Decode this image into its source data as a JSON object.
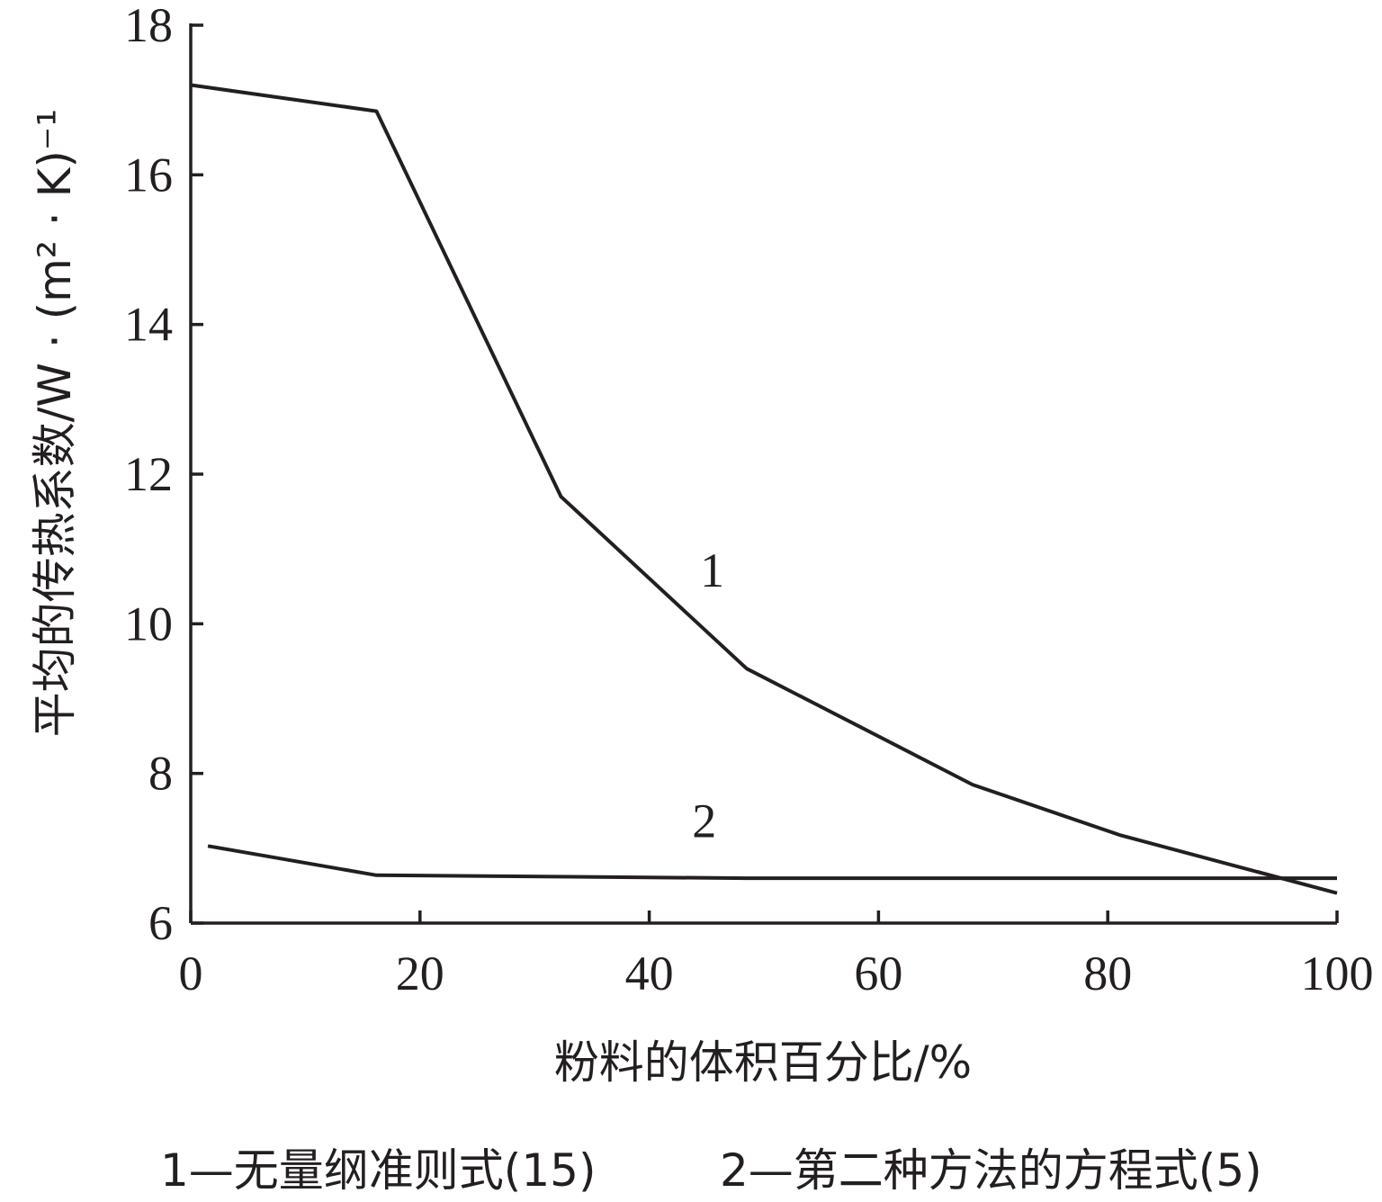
{
  "chart_data": {
    "type": "line",
    "xlabel": "粉料的体积百分比/%",
    "ylabel": "平均的传热系数/W · (m² · K)⁻¹",
    "xlim": [
      0,
      100
    ],
    "ylim": [
      6,
      18
    ],
    "x_ticks": [
      0,
      20,
      40,
      60,
      80,
      100
    ],
    "y_ticks": [
      6,
      8,
      10,
      12,
      14,
      16,
      18
    ],
    "grid": false,
    "series": [
      {
        "name": "1",
        "points": [
          [
            0,
            17.2
          ],
          [
            16.2,
            16.85
          ],
          [
            32.3,
            11.7
          ],
          [
            48.5,
            9.4
          ],
          [
            68.2,
            7.85
          ],
          [
            81.0,
            7.18
          ],
          [
            100,
            6.4
          ]
        ]
      },
      {
        "name": "2",
        "points": [
          [
            1.5,
            7.03
          ],
          [
            16.2,
            6.64
          ],
          [
            48.5,
            6.6
          ],
          [
            100,
            6.6
          ]
        ]
      }
    ],
    "series_label_positions": [
      {
        "text": "1",
        "x": 45.5,
        "y": 10.5
      },
      {
        "text": "2",
        "x": 44.8,
        "y": 7.15
      }
    ],
    "caption": {
      "item1": "1—无量纲准则式(15)",
      "item2": "2—第二种方法的方程式(5)"
    }
  }
}
